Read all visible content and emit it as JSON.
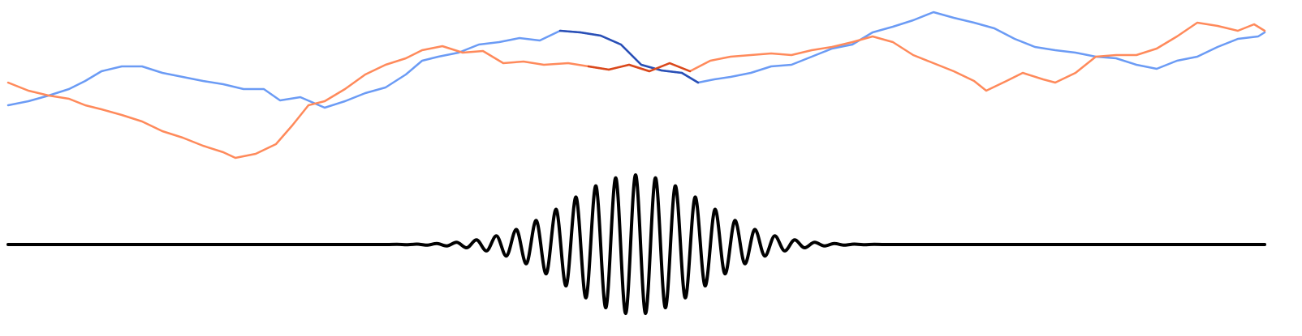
{
  "chart_data": [
    {
      "type": "line",
      "xlim": [
        10,
        1558
      ],
      "ylim": [
        10,
        210
      ],
      "series": [
        {
          "color": "#6b9bf5",
          "highlight": {
            "xlim": [
              680,
              865
            ],
            "color": "#2a4fb5"
          },
          "x": [
            10,
            35,
            60,
            85,
            105,
            125,
            150,
            175,
            200,
            225,
            250,
            275,
            300,
            325,
            345,
            370,
            400,
            425,
            450,
            475,
            500,
            520,
            540,
            565,
            590,
            615,
            640,
            665,
            690,
            715,
            740,
            765,
            790,
            815,
            840,
            860,
            880,
            900,
            925,
            950,
            975,
            1000,
            1025,
            1050,
            1075,
            1100,
            1125,
            1150,
            1175,
            1200,
            1225,
            1250,
            1275,
            1300,
            1325,
            1350,
            1375,
            1400,
            1425,
            1450,
            1475,
            1500,
            1525,
            1550,
            1558
          ],
          "values": [
            80,
            85,
            92,
            100,
            110,
            122,
            128,
            128,
            120,
            115,
            110,
            106,
            100,
            100,
            86,
            90,
            77,
            85,
            95,
            102,
            118,
            135,
            140,
            145,
            155,
            158,
            163,
            160,
            172,
            170,
            166,
            155,
            130,
            123,
            120,
            108,
            112,
            115,
            120,
            128,
            130,
            140,
            150,
            155,
            170,
            177,
            185,
            195,
            188,
            182,
            175,
            162,
            152,
            148,
            145,
            140,
            138,
            130,
            125,
            135,
            140,
            152,
            162,
            165,
            170
          ]
        },
        {
          "color": "#ff8a5b",
          "highlight": {
            "xlim": [
              720,
              850
            ],
            "color": "#d9481c"
          },
          "x": [
            10,
            35,
            60,
            85,
            105,
            125,
            150,
            175,
            200,
            225,
            250,
            275,
            290,
            315,
            340,
            360,
            380,
            400,
            425,
            450,
            475,
            500,
            520,
            545,
            570,
            595,
            620,
            645,
            670,
            700,
            725,
            750,
            775,
            800,
            825,
            850,
            875,
            900,
            925,
            950,
            975,
            1000,
            1025,
            1050,
            1075,
            1100,
            1125,
            1150,
            1175,
            1200,
            1215,
            1240,
            1260,
            1285,
            1300,
            1325,
            1350,
            1375,
            1400,
            1425,
            1450,
            1475,
            1500,
            1525,
            1545,
            1558
          ],
          "values": [
            108,
            98,
            92,
            88,
            80,
            75,
            68,
            60,
            48,
            40,
            30,
            22,
            15,
            20,
            32,
            55,
            80,
            85,
            100,
            118,
            130,
            138,
            148,
            153,
            145,
            147,
            132,
            134,
            130,
            132,
            128,
            124,
            130,
            122,
            132,
            122,
            135,
            140,
            142,
            144,
            142,
            148,
            152,
            158,
            165,
            158,
            142,
            132,
            122,
            110,
            98,
            110,
            120,
            112,
            108,
            120,
            140,
            142,
            142,
            150,
            165,
            182,
            178,
            172,
            180,
            172
          ]
        }
      ]
    },
    {
      "type": "line",
      "smooth": true,
      "color": "#000000",
      "xlim": [
        10,
        1558
      ],
      "ylim": [
        -100,
        100
      ],
      "x": [
        10,
        477,
        489,
        501.25,
        513.5,
        525.75,
        538,
        550.25,
        562.5,
        574.75,
        587,
        599.25,
        611.5,
        623.75,
        636,
        648.25,
        660.5,
        672.75,
        685,
        697.25,
        709.5,
        721.75,
        734,
        746.25,
        758.5,
        770.75,
        783,
        795.25,
        807.5,
        819.75,
        832,
        844.25,
        856.5,
        868.75,
        881,
        893.25,
        905.5,
        917.75,
        930,
        942.25,
        954.5,
        966.75,
        979,
        991.25,
        1003.5,
        1015.75,
        1028,
        1040.25,
        1052.5,
        1064.75,
        1077,
        1089,
        1558
      ],
      "values": [
        0,
        0,
        0.2,
        -0.3,
        0.5,
        -0.8,
        1.2,
        -1.8,
        2.7,
        -4.0,
        5.7,
        -7.9,
        10.7,
        -14.3,
        18.6,
        -23.8,
        29.7,
        -36.3,
        43.5,
        -51.1,
        58.6,
        -65.9,
        72.5,
        -78.1,
        82.4,
        -85.1,
        86,
        -85.1,
        82.4,
        -78.1,
        72.5,
        -65.9,
        58.6,
        -51.1,
        43.5,
        -36.3,
        29.7,
        -23.8,
        18.6,
        -14.3,
        10.7,
        -7.9,
        5.7,
        -4.0,
        2.7,
        -1.8,
        1.2,
        -0.8,
        0.5,
        -0.3,
        0.2,
        0,
        0
      ]
    }
  ]
}
